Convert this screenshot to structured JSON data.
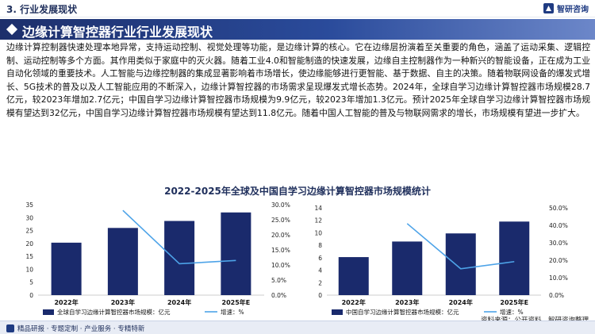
{
  "header": {
    "section_label": "3. 行业发展现状",
    "logo_text": "智研咨询"
  },
  "title": "边缘计算智控器行业行业发展现状",
  "paragraph": "边缘计算控制器快速处理本地异常，支持运动控制、视觉处理等功能，是边缘计算的核心。它在边缘层扮演着至关重要的角色，涵盖了运动采集、逻辑控制、运动控制等多个方面。其作用类似于家庭中的灭火器。随着工业4.0和智能制造的快速发展，边缘自主控制器作为一种新兴的智能设备，正在成为工业自动化领域的重要技术。人工智能与边缘控制器的集成显著影响着市场增长，使边缘能够进行更智能、基于数据、自主的决策。随着物联网设备的爆发式增长、5G技术的普及以及人工智能应用的不断深入，边缘计算智控器的市场需求呈现爆发式增长态势。2024年，全球自学习边缘计算智控器市场规模28.7亿元，较2023年增加2.7亿元；中国自学习边缘计算智控器市场规模为9.9亿元，较2023年增加1.3亿元。预计2025年全球自学习边缘计算智控器市场规模有望达到32亿元，中国自学习边缘计算智控器市场规模有望达到11.8亿元。随着中国人工智能的普及与物联网需求的增长，市场规模有望进一步扩大。",
  "chart_title": "2022-2025年全球及中国自学习边缘计算智控器市场规模统计",
  "chart_data": [
    {
      "type": "bar",
      "categories": [
        "2022年",
        "2023年",
        "2024年",
        "2025年E"
      ],
      "series": [
        {
          "name": "全球自学习边缘计算智控器市场规模：亿元",
          "values": [
            20.3,
            26.0,
            28.7,
            32.0
          ],
          "color": "#1a2a6c"
        },
        {
          "name": "增速：%",
          "values": [
            null,
            28.1,
            10.4,
            11.5
          ],
          "color": "#4da3e8",
          "type": "line",
          "axis": "right"
        }
      ],
      "yticks_left": [
        "0",
        "5",
        "10",
        "15",
        "20",
        "25",
        "30",
        "35"
      ],
      "yticks_right": [
        "0.0%",
        "5.0%",
        "10.0%",
        "15.0%",
        "20.0%",
        "25.0%",
        "30.0%"
      ],
      "ylim_left": [
        0,
        35
      ],
      "ylim_right": [
        0,
        30
      ]
    },
    {
      "type": "bar",
      "categories": [
        "2022年",
        "2023年",
        "2024年",
        "2025年E"
      ],
      "series": [
        {
          "name": "中国自学习边缘计算智控器市场规模：亿元",
          "values": [
            6.1,
            8.6,
            9.9,
            11.8
          ],
          "color": "#1a2a6c"
        },
        {
          "name": "增速：%",
          "values": [
            null,
            41.0,
            15.1,
            19.2
          ],
          "color": "#4da3e8",
          "type": "line",
          "axis": "right"
        }
      ],
      "yticks_left": [
        "0",
        "2",
        "4",
        "6",
        "8",
        "10",
        "12",
        "14"
      ],
      "yticks_right": [
        "0.0%",
        "10.0%",
        "20.0%",
        "30.0%",
        "40.0%",
        "50.0%"
      ],
      "ylim_left": [
        0,
        14
      ],
      "ylim_right": [
        0,
        50
      ]
    }
  ],
  "footer": {
    "tagline": "精品研报 · 专题定制 · 产业服务 · 专精特新",
    "source": "资料来源：公开资料、智研咨询整理"
  }
}
